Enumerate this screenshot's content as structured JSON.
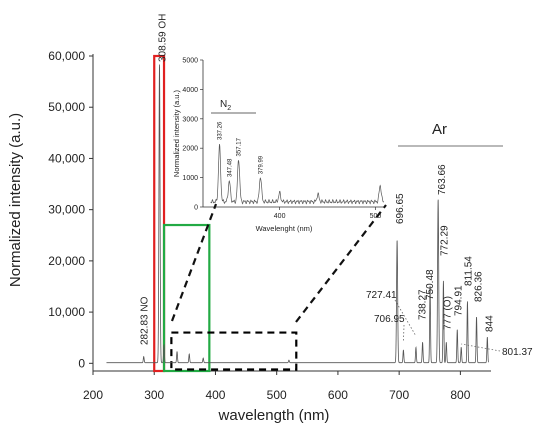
{
  "chart_data": {
    "type": "line",
    "title": "",
    "xlabel": "wavelength (nm)",
    "ylabel": "Normalized intensity (a.u.)",
    "xlim": [
      200,
      850
    ],
    "ylim": [
      -1500,
      60000
    ],
    "x_ticks": [
      "200",
      "300",
      "400",
      "500",
      "600",
      "700",
      "800"
    ],
    "x_tick_values": [
      200,
      300,
      400,
      500,
      600,
      700,
      800
    ],
    "y_ticks": [
      "0",
      "10,000",
      "20,000",
      "30,000",
      "40,000",
      "50,000",
      "60,000"
    ],
    "y_tick_values": [
      0,
      10000,
      20000,
      30000,
      40000,
      50000,
      60000
    ],
    "line_color": "#555555",
    "series": [
      {
        "peaks": [
          {
            "x": 282.83,
            "y": 1200
          },
          {
            "x": 308.59,
            "y": 58500
          },
          {
            "x": 315.9,
            "y": 3500
          },
          {
            "x": 337.26,
            "y": 2200
          },
          {
            "x": 357.17,
            "y": 1700
          },
          {
            "x": 379.99,
            "y": 900
          },
          {
            "x": 520,
            "y": 500
          },
          {
            "x": 696.65,
            "y": 24000
          },
          {
            "x": 706.95,
            "y": 2500
          },
          {
            "x": 727.41,
            "y": 3000
          },
          {
            "x": 738.27,
            "y": 4000
          },
          {
            "x": 750.48,
            "y": 15000
          },
          {
            "x": 763.66,
            "y": 32000
          },
          {
            "x": 772.29,
            "y": 16000
          },
          {
            "x": 777,
            "y": 4000
          },
          {
            "x": 794.91,
            "y": 6500
          },
          {
            "x": 801.37,
            "y": 3000
          },
          {
            "x": 811.54,
            "y": 12000
          },
          {
            "x": 826.36,
            "y": 9000
          },
          {
            "x": 844,
            "y": 5000
          }
        ]
      }
    ],
    "annotations": [
      {
        "text": "282.83 NO",
        "x": 282.83
      },
      {
        "text": "308.59 OH",
        "x": 308.59
      },
      {
        "text": "Ar",
        "x": 770
      },
      {
        "text": "696.65",
        "x": 696.65
      },
      {
        "text": "706.95",
        "x": 706.95
      },
      {
        "text": "727.41",
        "x": 727.41
      },
      {
        "text": "738.27",
        "x": 738.27
      },
      {
        "text": "750.48",
        "x": 750.48
      },
      {
        "text": "763.66",
        "x": 763.66
      },
      {
        "text": "772.29",
        "x": 772.29
      },
      {
        "text": "777 (O)",
        "x": 777
      },
      {
        "text": "794.91",
        "x": 794.91
      },
      {
        "text": "801.37",
        "x": 801.37
      },
      {
        "text": "811.54",
        "x": 811.54
      },
      {
        "text": "826.36",
        "x": 826.36
      },
      {
        "text": "844",
        "x": 844
      }
    ],
    "highlight_boxes": [
      {
        "color": "#e02020",
        "x_range": [
          300,
          316
        ],
        "y_range": [
          -1500,
          60000
        ]
      },
      {
        "color": "#22aa44",
        "x_range": [
          316,
          390
        ],
        "y_range": [
          -1500,
          27000
        ]
      },
      {
        "color": "#000000",
        "style": "dashed",
        "x_range": [
          328,
          532
        ],
        "y_range": [
          -1200,
          6000
        ]
      }
    ],
    "inset": {
      "type": "line",
      "xlabel": "Wavelenght (nm)",
      "ylabel": "Normalized intensity (a.u.)",
      "xlim": [
        320,
        510
      ],
      "ylim": [
        0,
        5000
      ],
      "x_ticks": [
        "400",
        "500"
      ],
      "x_tick_values": [
        400,
        500
      ],
      "y_ticks": [
        "0",
        "1000",
        "2000",
        "3000",
        "4000",
        "5000"
      ],
      "y_tick_values": [
        0,
        1000,
        2000,
        3000,
        4000,
        5000
      ],
      "group_label_main": "N",
      "group_label_sub": "2",
      "peaks": [
        {
          "x": 337.26,
          "y": 1900
        },
        {
          "x": 347.48,
          "y": 700
        },
        {
          "x": 357.17,
          "y": 1450
        },
        {
          "x": 379.99,
          "y": 850
        },
        {
          "x": 400,
          "y": 300
        },
        {
          "x": 440,
          "y": 250
        },
        {
          "x": 505,
          "y": 550
        }
      ],
      "labels": [
        {
          "text": "337.26",
          "x": 337.26
        },
        {
          "text": "347.48",
          "x": 347.48
        },
        {
          "text": "357.17",
          "x": 357.17
        },
        {
          "text": "379.99",
          "x": 379.99
        }
      ]
    }
  }
}
